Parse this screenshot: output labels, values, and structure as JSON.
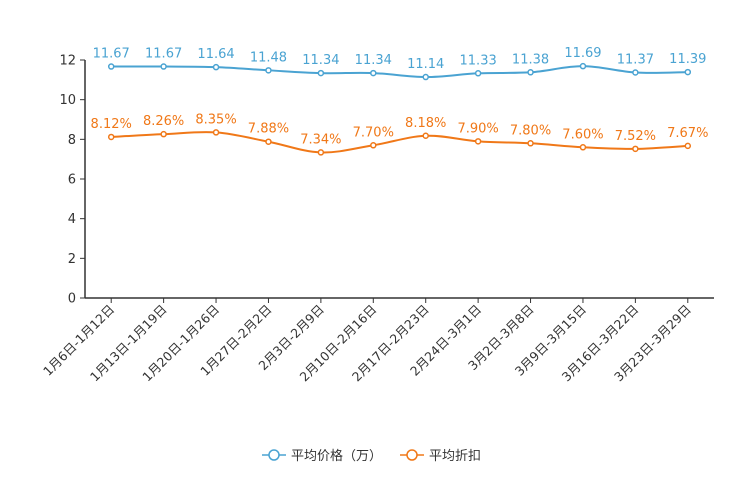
{
  "chart_data": {
    "type": "line",
    "title": "",
    "xlabel": "",
    "ylabel": "",
    "ylim": [
      0,
      12
    ],
    "yticks": [
      0,
      2,
      4,
      6,
      8,
      10,
      12
    ],
    "categories": [
      "1月6日-1月12日",
      "1月13日-1月19日",
      "1月20日-1月26日",
      "1月27日-2月2日",
      "2月3日-2月9日",
      "2月10日-2月16日",
      "2月17日-2月23日",
      "2月24日-3月1日",
      "3月2日-3月8日",
      "3月9日-3月15日",
      "3月16日-3月22日",
      "3月23日-3月29日"
    ],
    "series": [
      {
        "name": "平均价格（万）",
        "color": "#4aa3d2",
        "values": [
          11.67,
          11.67,
          11.64,
          11.48,
          11.34,
          11.34,
          11.14,
          11.33,
          11.38,
          11.69,
          11.37,
          11.39
        ],
        "labels": [
          "11.67",
          "11.67",
          "11.64",
          "11.48",
          "11.34",
          "11.34",
          "11.14",
          "11.33",
          "11.38",
          "11.69",
          "11.37",
          "11.39"
        ]
      },
      {
        "name": "平均折扣",
        "color": "#f07818",
        "values": [
          8.12,
          8.26,
          8.35,
          7.88,
          7.34,
          7.7,
          8.18,
          7.9,
          7.8,
          7.6,
          7.52,
          7.67
        ],
        "labels": [
          "8.12%",
          "8.26%",
          "8.35%",
          "7.88%",
          "7.34%",
          "7.70%",
          "8.18%",
          "7.90%",
          "7.80%",
          "7.60%",
          "7.52%",
          "7.67%"
        ]
      }
    ],
    "legend_position": "bottom-center",
    "grid": false
  }
}
